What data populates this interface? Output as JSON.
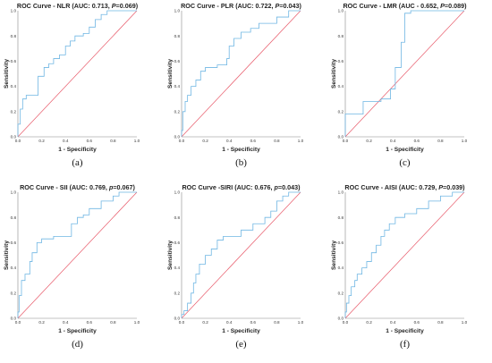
{
  "chart_data": [
    {
      "type": "line",
      "panel_label": "(a)",
      "title_main": "ROC Curve - NLR (AUC: 0.713, ",
      "title_p": "P",
      "title_end": "=0.069)",
      "xlabel": "1 - Specificity",
      "ylabel": "Sensitivity",
      "xlim": [
        0,
        1
      ],
      "ylim": [
        0,
        1
      ],
      "ticks": [
        "0.0",
        "0.2",
        "0.4",
        "0.6",
        "0.8",
        "1.0"
      ],
      "colors": {
        "roc": "#6fb6e3",
        "reference": "#e85a6a",
        "axis": "#888888"
      },
      "reference_line": [
        [
          0,
          0
        ],
        [
          1,
          1
        ]
      ],
      "roc": [
        [
          0,
          0
        ],
        [
          0,
          0.1
        ],
        [
          0.02,
          0.1
        ],
        [
          0.02,
          0.22
        ],
        [
          0.04,
          0.22
        ],
        [
          0.04,
          0.3
        ],
        [
          0.07,
          0.3
        ],
        [
          0.07,
          0.33
        ],
        [
          0.17,
          0.33
        ],
        [
          0.17,
          0.48
        ],
        [
          0.22,
          0.48
        ],
        [
          0.22,
          0.55
        ],
        [
          0.26,
          0.55
        ],
        [
          0.26,
          0.58
        ],
        [
          0.3,
          0.58
        ],
        [
          0.3,
          0.62
        ],
        [
          0.35,
          0.62
        ],
        [
          0.35,
          0.65
        ],
        [
          0.4,
          0.65
        ],
        [
          0.4,
          0.72
        ],
        [
          0.44,
          0.72
        ],
        [
          0.44,
          0.76
        ],
        [
          0.48,
          0.76
        ],
        [
          0.48,
          0.8
        ],
        [
          0.55,
          0.8
        ],
        [
          0.55,
          0.82
        ],
        [
          0.6,
          0.82
        ],
        [
          0.6,
          0.87
        ],
        [
          0.65,
          0.87
        ],
        [
          0.65,
          0.93
        ],
        [
          0.7,
          0.93
        ],
        [
          0.7,
          0.97
        ],
        [
          0.75,
          0.97
        ],
        [
          0.75,
          1
        ],
        [
          1,
          1
        ]
      ]
    },
    {
      "type": "line",
      "panel_label": "(b)",
      "title_main": "ROC Curve - PLR (AUC: 0.722, ",
      "title_p": "P",
      "title_end": "=0.043)",
      "xlabel": "1 - Specificity",
      "ylabel": "Sensitivity",
      "xlim": [
        0,
        1
      ],
      "ylim": [
        0,
        1
      ],
      "ticks": [
        "0.0",
        "0.2",
        "0.4",
        "0.6",
        "0.8",
        "1.0"
      ],
      "colors": {
        "roc": "#6fb6e3",
        "reference": "#e85a6a",
        "axis": "#888888"
      },
      "reference_line": [
        [
          0,
          0
        ],
        [
          1,
          1
        ]
      ],
      "roc": [
        [
          0,
          0
        ],
        [
          0,
          0.05
        ],
        [
          0.01,
          0.05
        ],
        [
          0.01,
          0.2
        ],
        [
          0.03,
          0.2
        ],
        [
          0.03,
          0.28
        ],
        [
          0.05,
          0.28
        ],
        [
          0.05,
          0.33
        ],
        [
          0.08,
          0.33
        ],
        [
          0.08,
          0.4
        ],
        [
          0.12,
          0.4
        ],
        [
          0.12,
          0.45
        ],
        [
          0.16,
          0.45
        ],
        [
          0.16,
          0.52
        ],
        [
          0.2,
          0.52
        ],
        [
          0.2,
          0.55
        ],
        [
          0.3,
          0.55
        ],
        [
          0.3,
          0.57
        ],
        [
          0.38,
          0.57
        ],
        [
          0.38,
          0.62
        ],
        [
          0.4,
          0.62
        ],
        [
          0.4,
          0.72
        ],
        [
          0.44,
          0.72
        ],
        [
          0.44,
          0.78
        ],
        [
          0.5,
          0.78
        ],
        [
          0.5,
          0.83
        ],
        [
          0.58,
          0.83
        ],
        [
          0.58,
          0.86
        ],
        [
          0.65,
          0.86
        ],
        [
          0.65,
          0.9
        ],
        [
          0.8,
          0.9
        ],
        [
          0.8,
          0.95
        ],
        [
          0.9,
          0.95
        ],
        [
          0.9,
          1
        ],
        [
          1,
          1
        ]
      ]
    },
    {
      "type": "line",
      "panel_label": "(c)",
      "title_main": "ROC Curve - LMR (AUC - 0.652, ",
      "title_p": "P",
      "title_end": "=0.089)",
      "xlabel": "1 - Specificity",
      "ylabel": "Sensitivity",
      "xlim": [
        0,
        1
      ],
      "ylim": [
        0,
        1
      ],
      "ticks": [
        "0.0",
        "0.2",
        "0.4",
        "0.6",
        "0.8",
        "1.0"
      ],
      "colors": {
        "roc": "#6fb6e3",
        "reference": "#e85a6a",
        "axis": "#888888"
      },
      "reference_line": [
        [
          0,
          0
        ],
        [
          1,
          1
        ]
      ],
      "roc": [
        [
          0,
          0
        ],
        [
          0,
          0.18
        ],
        [
          0.15,
          0.18
        ],
        [
          0.15,
          0.28
        ],
        [
          0.3,
          0.28
        ],
        [
          0.3,
          0.3
        ],
        [
          0.38,
          0.3
        ],
        [
          0.38,
          0.38
        ],
        [
          0.42,
          0.38
        ],
        [
          0.42,
          0.55
        ],
        [
          0.47,
          0.55
        ],
        [
          0.47,
          0.75
        ],
        [
          0.5,
          0.75
        ],
        [
          0.5,
          0.98
        ],
        [
          0.55,
          0.98
        ],
        [
          0.55,
          1
        ],
        [
          1,
          1
        ]
      ]
    },
    {
      "type": "line",
      "panel_label": "(d)",
      "title_main": "ROC Curve - SII (AUC: 0.769, ",
      "title_p": "p",
      "title_end": "=0.067)",
      "xlabel": "1 - Specificity",
      "ylabel": "Sensitivity",
      "xlim": [
        0,
        1
      ],
      "ylim": [
        0,
        1
      ],
      "ticks": [
        "0.0",
        "0.2",
        "0.4",
        "0.6",
        "0.8",
        "1.0"
      ],
      "colors": {
        "roc": "#6fb6e3",
        "reference": "#e85a6a",
        "axis": "#888888"
      },
      "reference_line": [
        [
          0,
          0
        ],
        [
          1,
          1
        ]
      ],
      "roc": [
        [
          0,
          0
        ],
        [
          0,
          0.05
        ],
        [
          0.01,
          0.05
        ],
        [
          0.01,
          0.18
        ],
        [
          0.03,
          0.18
        ],
        [
          0.03,
          0.3
        ],
        [
          0.06,
          0.3
        ],
        [
          0.06,
          0.35
        ],
        [
          0.1,
          0.35
        ],
        [
          0.1,
          0.45
        ],
        [
          0.12,
          0.45
        ],
        [
          0.12,
          0.52
        ],
        [
          0.16,
          0.52
        ],
        [
          0.16,
          0.6
        ],
        [
          0.2,
          0.6
        ],
        [
          0.2,
          0.63
        ],
        [
          0.3,
          0.63
        ],
        [
          0.3,
          0.65
        ],
        [
          0.45,
          0.65
        ],
        [
          0.45,
          0.75
        ],
        [
          0.5,
          0.75
        ],
        [
          0.5,
          0.8
        ],
        [
          0.55,
          0.8
        ],
        [
          0.55,
          0.82
        ],
        [
          0.6,
          0.82
        ],
        [
          0.6,
          0.87
        ],
        [
          0.7,
          0.87
        ],
        [
          0.7,
          0.93
        ],
        [
          0.8,
          0.93
        ],
        [
          0.8,
          0.97
        ],
        [
          0.85,
          0.97
        ],
        [
          0.85,
          1
        ],
        [
          1,
          1
        ]
      ]
    },
    {
      "type": "line",
      "panel_label": "(e)",
      "title_main": "ROC Curve -SIRI (AUC: 0.676, ",
      "title_p": "p",
      "title_end": "=0.043)",
      "xlabel": "1 - Specificity",
      "ylabel": "Sensitivity",
      "xlim": [
        0,
        1
      ],
      "ylim": [
        0,
        1
      ],
      "ticks": [
        "0.0",
        "0.2",
        "0.4",
        "0.6",
        "0.8",
        "1.0"
      ],
      "colors": {
        "roc": "#6fb6e3",
        "reference": "#e85a6a",
        "axis": "#888888"
      },
      "reference_line": [
        [
          0,
          0
        ],
        [
          1,
          1
        ]
      ],
      "roc": [
        [
          0,
          0
        ],
        [
          0,
          0.03
        ],
        [
          0.02,
          0.03
        ],
        [
          0.02,
          0.06
        ],
        [
          0.05,
          0.06
        ],
        [
          0.05,
          0.12
        ],
        [
          0.08,
          0.12
        ],
        [
          0.08,
          0.2
        ],
        [
          0.1,
          0.2
        ],
        [
          0.1,
          0.28
        ],
        [
          0.12,
          0.28
        ],
        [
          0.12,
          0.35
        ],
        [
          0.15,
          0.35
        ],
        [
          0.15,
          0.43
        ],
        [
          0.2,
          0.43
        ],
        [
          0.2,
          0.5
        ],
        [
          0.25,
          0.5
        ],
        [
          0.25,
          0.55
        ],
        [
          0.3,
          0.55
        ],
        [
          0.3,
          0.62
        ],
        [
          0.35,
          0.62
        ],
        [
          0.35,
          0.65
        ],
        [
          0.5,
          0.65
        ],
        [
          0.5,
          0.7
        ],
        [
          0.6,
          0.7
        ],
        [
          0.6,
          0.75
        ],
        [
          0.7,
          0.75
        ],
        [
          0.7,
          0.8
        ],
        [
          0.75,
          0.8
        ],
        [
          0.75,
          0.85
        ],
        [
          0.8,
          0.85
        ],
        [
          0.8,
          0.93
        ],
        [
          0.85,
          0.93
        ],
        [
          0.85,
          0.97
        ],
        [
          0.9,
          0.97
        ],
        [
          0.9,
          1
        ],
        [
          1,
          1
        ]
      ]
    },
    {
      "type": "line",
      "panel_label": "(f)",
      "title_main": "ROC Curve - AISI (AUC: 0.729, ",
      "title_p": "P",
      "title_end": "=0.039)",
      "xlabel": "1 - Specificity",
      "ylabel": "Sensitivity",
      "xlim": [
        0,
        1
      ],
      "ylim": [
        0,
        1
      ],
      "ticks": [
        "0.0",
        "0.2",
        "0.4",
        "0.6",
        "0.8",
        "1.0"
      ],
      "colors": {
        "roc": "#6fb6e3",
        "reference": "#e85a6a",
        "axis": "#888888"
      },
      "reference_line": [
        [
          0,
          0
        ],
        [
          1,
          1
        ]
      ],
      "roc": [
        [
          0,
          0
        ],
        [
          0,
          0.05
        ],
        [
          0.01,
          0.05
        ],
        [
          0.01,
          0.12
        ],
        [
          0.03,
          0.12
        ],
        [
          0.03,
          0.18
        ],
        [
          0.05,
          0.18
        ],
        [
          0.05,
          0.25
        ],
        [
          0.08,
          0.25
        ],
        [
          0.08,
          0.3
        ],
        [
          0.1,
          0.3
        ],
        [
          0.1,
          0.35
        ],
        [
          0.14,
          0.35
        ],
        [
          0.14,
          0.4
        ],
        [
          0.18,
          0.4
        ],
        [
          0.18,
          0.45
        ],
        [
          0.22,
          0.45
        ],
        [
          0.22,
          0.52
        ],
        [
          0.26,
          0.52
        ],
        [
          0.26,
          0.58
        ],
        [
          0.3,
          0.58
        ],
        [
          0.3,
          0.65
        ],
        [
          0.33,
          0.65
        ],
        [
          0.33,
          0.7
        ],
        [
          0.37,
          0.7
        ],
        [
          0.37,
          0.75
        ],
        [
          0.42,
          0.75
        ],
        [
          0.42,
          0.8
        ],
        [
          0.5,
          0.8
        ],
        [
          0.5,
          0.83
        ],
        [
          0.6,
          0.83
        ],
        [
          0.6,
          0.87
        ],
        [
          0.7,
          0.87
        ],
        [
          0.7,
          0.93
        ],
        [
          0.8,
          0.93
        ],
        [
          0.8,
          0.97
        ],
        [
          0.9,
          0.97
        ],
        [
          0.9,
          1
        ],
        [
          1,
          1
        ]
      ]
    }
  ]
}
